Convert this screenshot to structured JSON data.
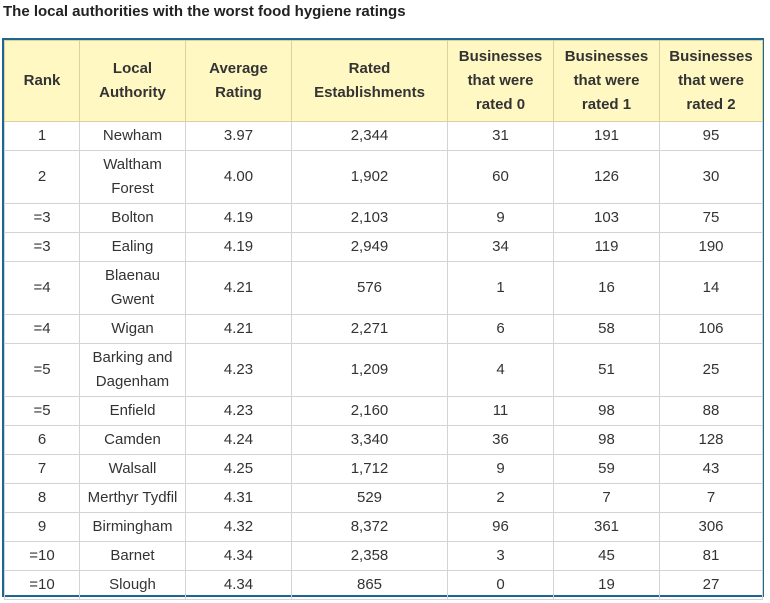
{
  "title": "The local authorities with the worst food hygiene ratings",
  "columns": [
    "Rank",
    "Local Authority",
    "Average Rating",
    "Rated Establishments",
    "Businesses that were rated 0",
    "Businesses that were rated 1",
    "Businesses that were rated 2"
  ],
  "rows": [
    [
      "1",
      "Newham",
      "3.97",
      "2,344",
      "31",
      "191",
      "95"
    ],
    [
      "2",
      "Waltham Forest",
      "4.00",
      "1,902",
      "60",
      "126",
      "30"
    ],
    [
      "=3",
      "Bolton",
      "4.19",
      "2,103",
      "9",
      "103",
      "75"
    ],
    [
      "=3",
      "Ealing",
      "4.19",
      "2,949",
      "34",
      "119",
      "190"
    ],
    [
      "=4",
      "Blaenau Gwent",
      "4.21",
      "576",
      "1",
      "16",
      "14"
    ],
    [
      "=4",
      "Wigan",
      "4.21",
      "2,271",
      "6",
      "58",
      "106"
    ],
    [
      "=5",
      "Barking and Dagenham",
      "4.23",
      "1,209",
      "4",
      "51",
      "25"
    ],
    [
      "=5",
      "Enfield",
      "4.23",
      "2,160",
      "11",
      "98",
      "88"
    ],
    [
      "6",
      "Camden",
      "4.24",
      "3,340",
      "36",
      "98",
      "128"
    ],
    [
      "7",
      "Walsall",
      "4.25",
      "1,712",
      "9",
      "59",
      "43"
    ],
    [
      "8",
      "Merthyr Tydfil",
      "4.31",
      "529",
      "2",
      "7",
      "7"
    ],
    [
      "9",
      "Birmingham",
      "4.32",
      "8,372",
      "96",
      "361",
      "306"
    ],
    [
      "=10",
      "Barnet",
      "4.34",
      "2,358",
      "3",
      "45",
      "81"
    ],
    [
      "=10",
      "Slough",
      "4.34",
      "865",
      "0",
      "19",
      "27"
    ]
  ],
  "colors": {
    "header_bg": "#fff8c3",
    "border": "#1f6591",
    "grid": "#d3d3d3"
  }
}
